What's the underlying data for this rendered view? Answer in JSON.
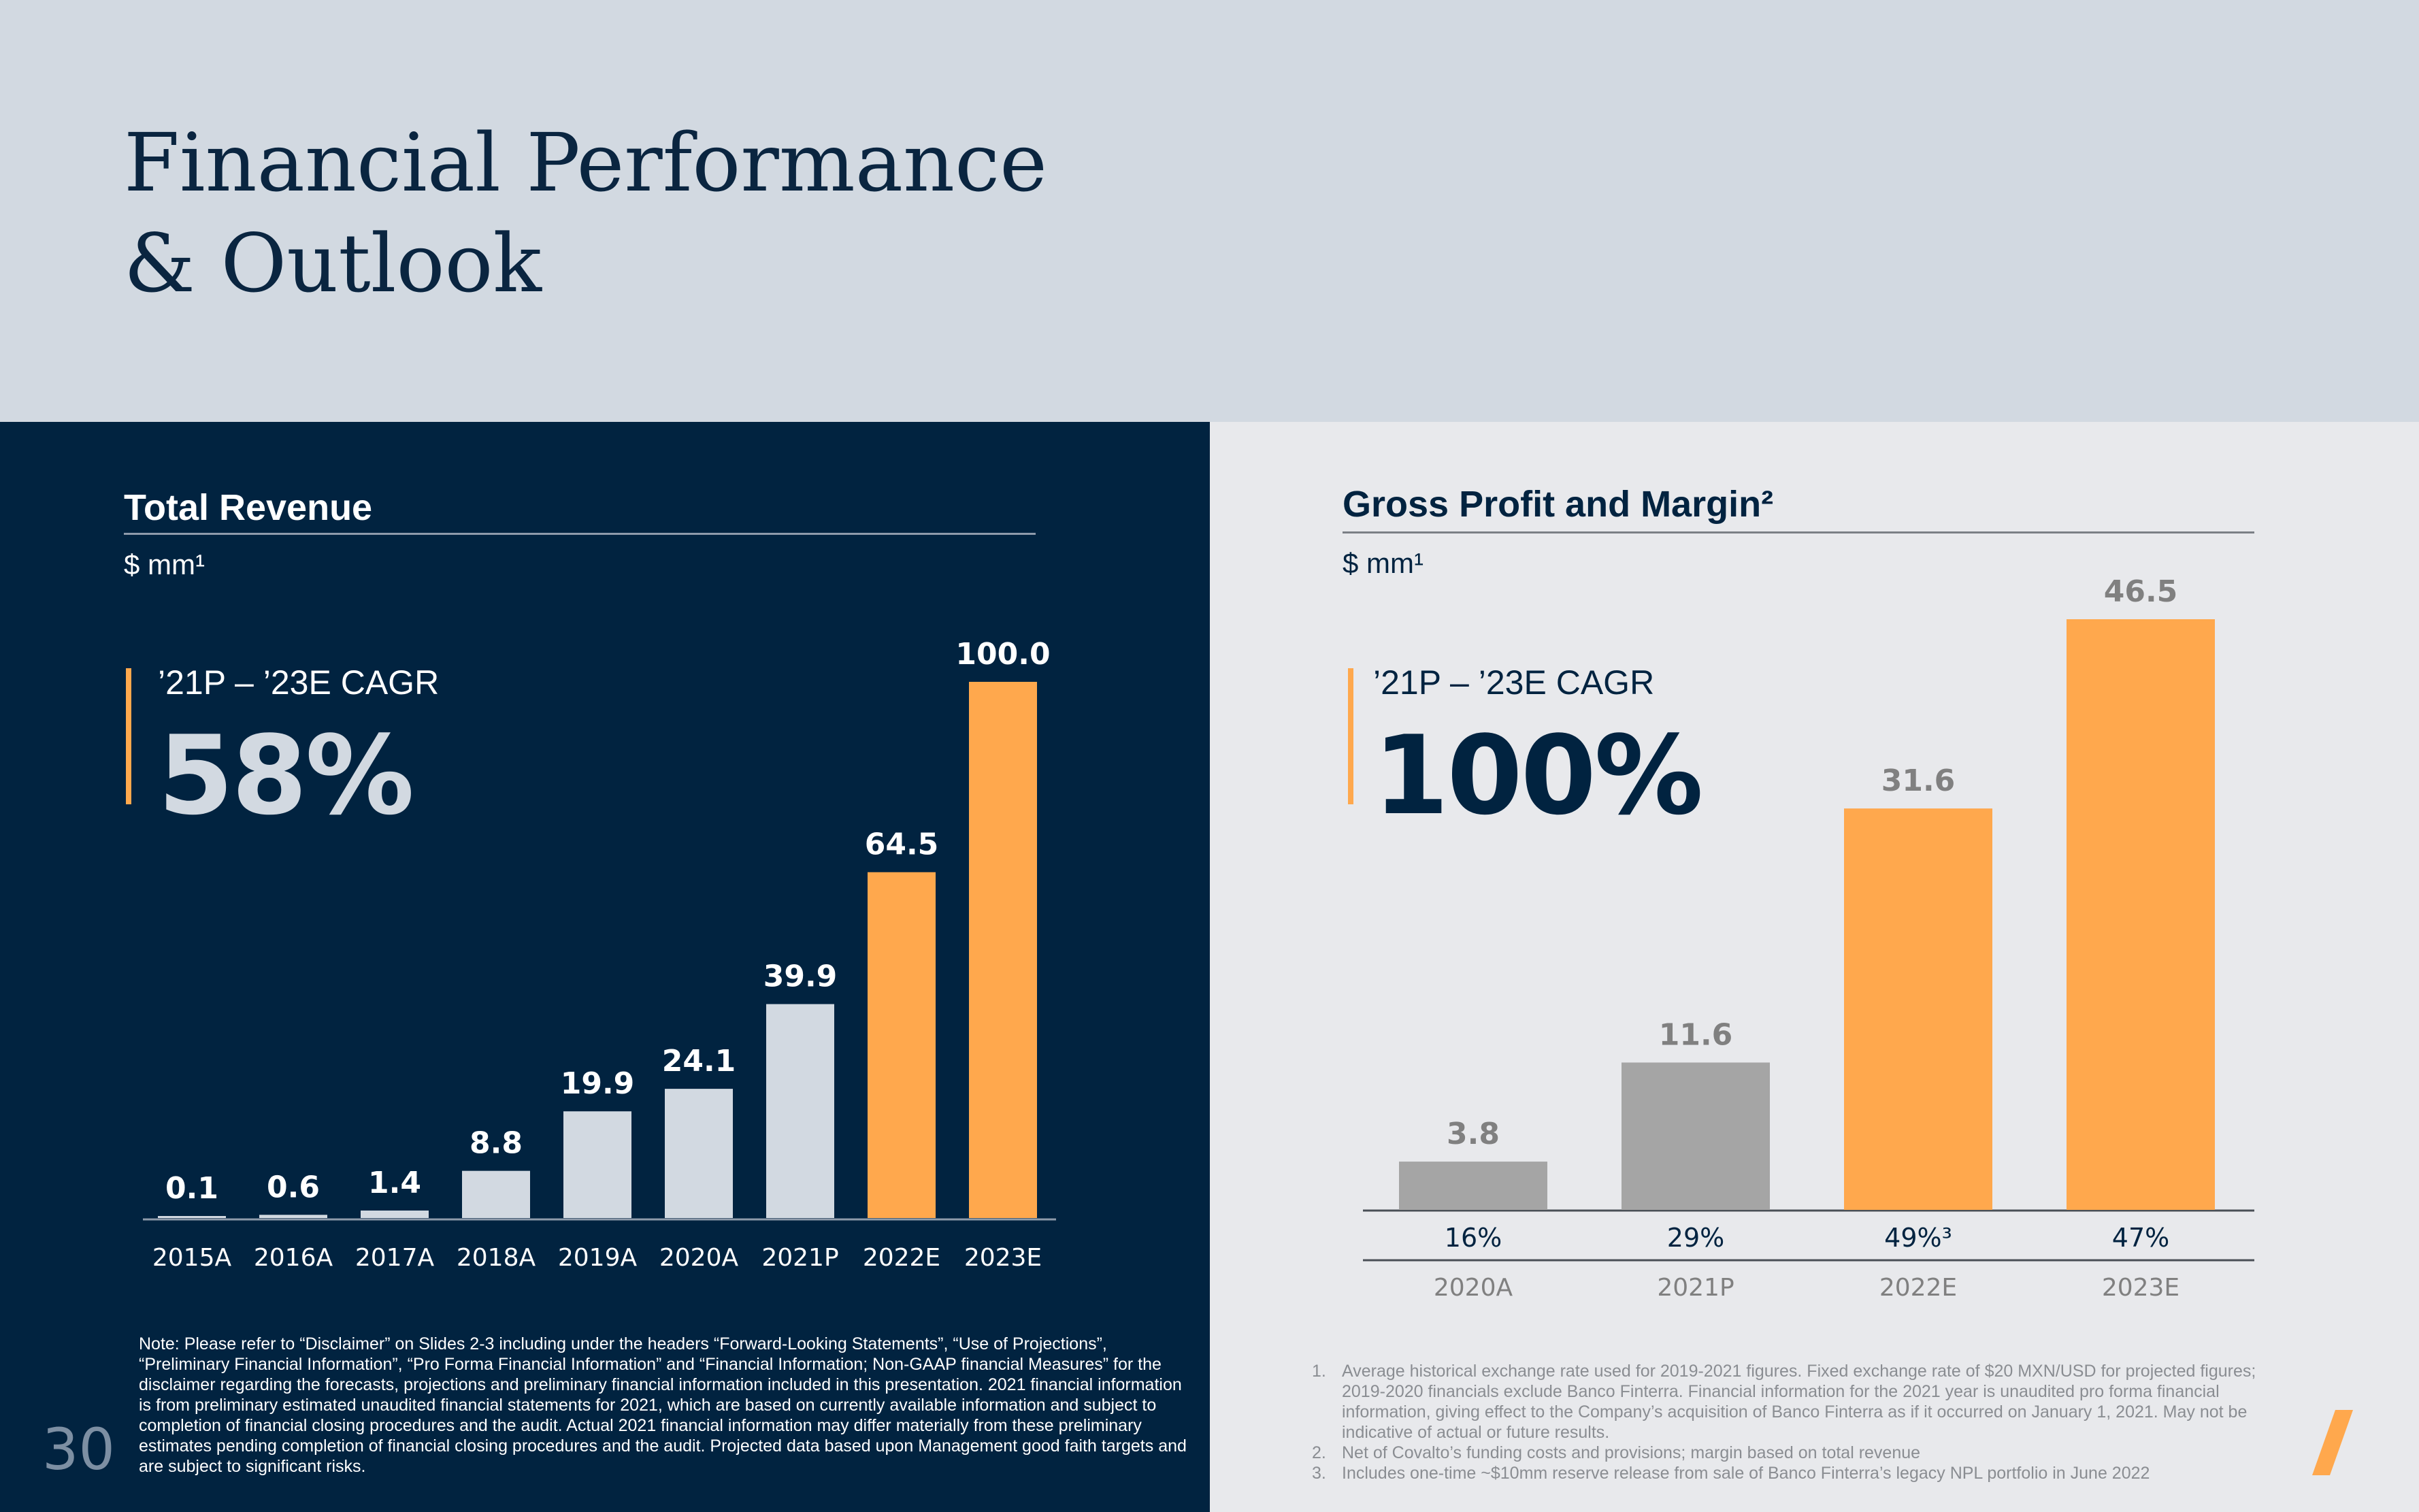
{
  "header": {
    "title_line1": "Financial Performance",
    "title_line2": "& Outlook"
  },
  "left_panel": {
    "section_title": "Total Revenue",
    "unit": "$ mm¹",
    "cagr_label": "’21P – ’23E CAGR",
    "cagr_value": "58%",
    "note": "Note: Please refer to “Disclaimer” on Slides 2-3 including under the headers “Forward-Looking Statements”, “Use of Projections”, “Preliminary Financial Information”, “Pro Forma Financial Information” and “Financial Information; Non-GAAP financial Measures” for the disclaimer regarding the forecasts, projections and preliminary financial information included in this presentation. 2021 financial information is from preliminary estimated unaudited financial statements for 2021, which are based on currently available information and subject to completion of financial closing procedures and the audit. Actual 2021 financial information may differ materially from these preliminary estimates pending completion of financial closing procedures and the audit. Projected data based upon Management good faith targets and are subject to significant risks.",
    "page_number": "30"
  },
  "right_panel": {
    "section_title": "Gross Profit and Margin²",
    "unit": "$ mm¹",
    "cagr_label": "’21P – ’23E CAGR",
    "cagr_value": "100%",
    "footnotes": [
      {
        "num": "1.",
        "text": "Average historical exchange rate used for 2019-2021 figures. Fixed exchange rate of $20 MXN/USD for projected figures; 2019-2020 financials exclude Banco Finterra. Financial information for the 2021 year is unaudited pro forma financial information, giving effect to the Company’s acquisition of Banco Finterra as if it occurred on January 1, 2021. May not be indicative of actual or future results."
      },
      {
        "num": "2.",
        "text": "Net of Covalto’s funding costs and provisions; margin based on total revenue"
      },
      {
        "num": "3.",
        "text": "Includes one-time ~$10mm reserve release from sale of Banco Finterra’s legacy NPL portfolio in June 2022"
      }
    ]
  },
  "colors": {
    "navy": "#012340",
    "header_bg": "#d2d9e1",
    "light_panel_bg": "#e8e9ec",
    "historical_bar_left": "#d2d9e1",
    "historical_bar_right": "#a5a5a5",
    "projected_bar": "#ffa84d"
  },
  "chart_data": [
    {
      "type": "bar",
      "title": "Total Revenue",
      "ylabel": "$ mm¹",
      "categories": [
        "2015A",
        "2016A",
        "2017A",
        "2018A",
        "2019A",
        "2020A",
        "2021P",
        "2022E",
        "2023E"
      ],
      "values": [
        0.1,
        0.6,
        1.4,
        8.8,
        19.9,
        24.1,
        39.9,
        64.5,
        100.0
      ],
      "value_labels": [
        "0.1",
        "0.6",
        "1.4",
        "8.8",
        "19.9",
        "24.1",
        "39.9",
        "64.5",
        "100.0"
      ],
      "projected": [
        false,
        false,
        false,
        false,
        false,
        false,
        false,
        true,
        true
      ],
      "ylim": [
        0,
        100
      ],
      "grid": false
    },
    {
      "type": "bar",
      "title": "Gross Profit and Margin²",
      "ylabel": "$ mm¹",
      "categories": [
        "2020A",
        "2021P",
        "2022E",
        "2023E"
      ],
      "values": [
        3.8,
        11.6,
        31.6,
        46.5
      ],
      "value_labels": [
        "3.8",
        "11.6",
        "31.6",
        "46.5"
      ],
      "margins": [
        "16%",
        "29%",
        "49%³",
        "47%"
      ],
      "projected": [
        false,
        false,
        true,
        true
      ],
      "ylim": [
        0,
        46.5
      ],
      "grid": false
    }
  ]
}
